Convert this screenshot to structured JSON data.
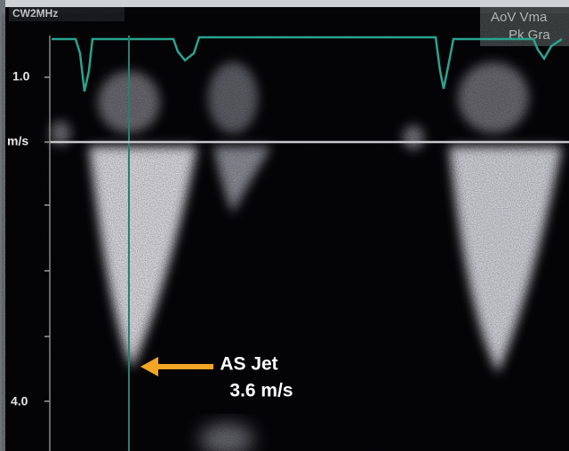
{
  "header": {
    "mode": "CW2MHz",
    "measure_1": "AoV Vma",
    "measure_2": "Pk Gra"
  },
  "scale": {
    "top_label": "1.0",
    "unit": "m/s",
    "bottom_label": "4.0"
  },
  "annotation": {
    "line_1": "AS Jet",
    "line_2": "3.6 m/s"
  }
}
